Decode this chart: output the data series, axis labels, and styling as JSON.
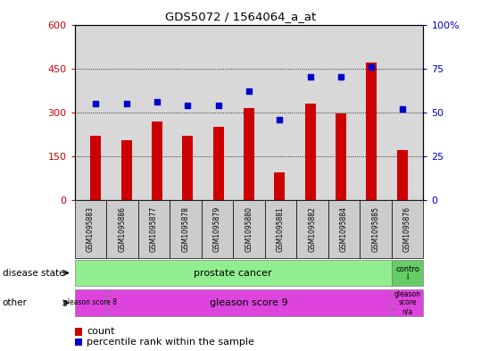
{
  "title": "GDS5072 / 1564064_a_at",
  "samples": [
    "GSM1095883",
    "GSM1095886",
    "GSM1095877",
    "GSM1095878",
    "GSM1095879",
    "GSM1095880",
    "GSM1095881",
    "GSM1095882",
    "GSM1095884",
    "GSM1095885",
    "GSM1095876"
  ],
  "bar_values": [
    220,
    205,
    270,
    220,
    250,
    315,
    95,
    330,
    295,
    470,
    170
  ],
  "dot_values_pct": [
    55,
    55,
    56,
    54,
    54,
    62,
    46,
    70,
    70,
    76,
    52
  ],
  "bar_color": "#cc0000",
  "dot_color": "#0000cc",
  "ylim_left": [
    0,
    600
  ],
  "ylim_right": [
    0,
    100
  ],
  "yticks_left": [
    0,
    150,
    300,
    450,
    600
  ],
  "yticks_right": [
    0,
    25,
    50,
    75,
    100
  ],
  "disease_state_label_pc": "prostate cancer",
  "disease_state_label_ctrl": "contro\nl",
  "disease_state_color_pc": "#90ee90",
  "disease_state_color_ctrl": "#66cc66",
  "other_label_gs8": "gleason score 8",
  "other_label_gs9": "gleason score 9",
  "other_label_na": "gleason\nscore\nn/a",
  "other_color": "#dd44dd",
  "legend_count": "count",
  "legend_pct": "percentile rank within the sample",
  "plot_bg": "#d8d8d8",
  "label_disease_state": "disease state",
  "label_other": "other"
}
